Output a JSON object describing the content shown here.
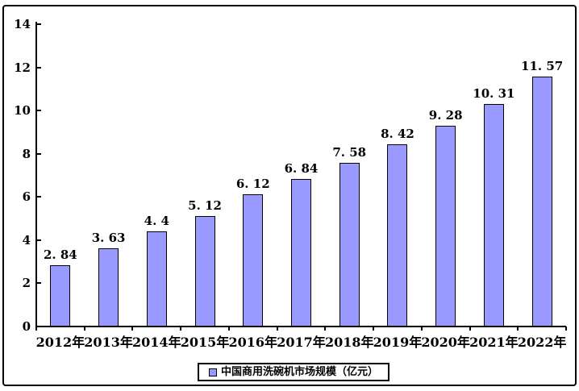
{
  "colors": {
    "bar_fill": "#9999FF",
    "bar_border": "#000000",
    "axis": "#000000",
    "text": "#000000",
    "background": "#FFFFFF"
  },
  "legend": {
    "label": "中国商用洗碗机市场规模（亿元）"
  },
  "chart_data": {
    "type": "bar",
    "title": "",
    "xlabel": "",
    "ylabel": "",
    "categories": [
      "2012年",
      "2013年",
      "2014年",
      "2015年",
      "2016年",
      "2017年",
      "2018年",
      "2019年",
      "2020年",
      "2021年",
      "2022年"
    ],
    "values": [
      2.84,
      3.63,
      4.4,
      5.12,
      6.12,
      6.84,
      7.58,
      8.42,
      9.28,
      10.31,
      11.57
    ],
    "value_labels": [
      "2. 84",
      "3. 63",
      "4. 4",
      "5. 12",
      "6. 12",
      "6. 84",
      "7. 58",
      "8. 42",
      "9. 28",
      "10. 31",
      "11. 57"
    ],
    "series_name": "中国商用洗碗机市场规模（亿元）",
    "ylim": [
      0,
      14
    ],
    "y_ticks": [
      0,
      2,
      4,
      6,
      8,
      10,
      12,
      14
    ],
    "grid": "off",
    "legend_position": "bottom"
  }
}
